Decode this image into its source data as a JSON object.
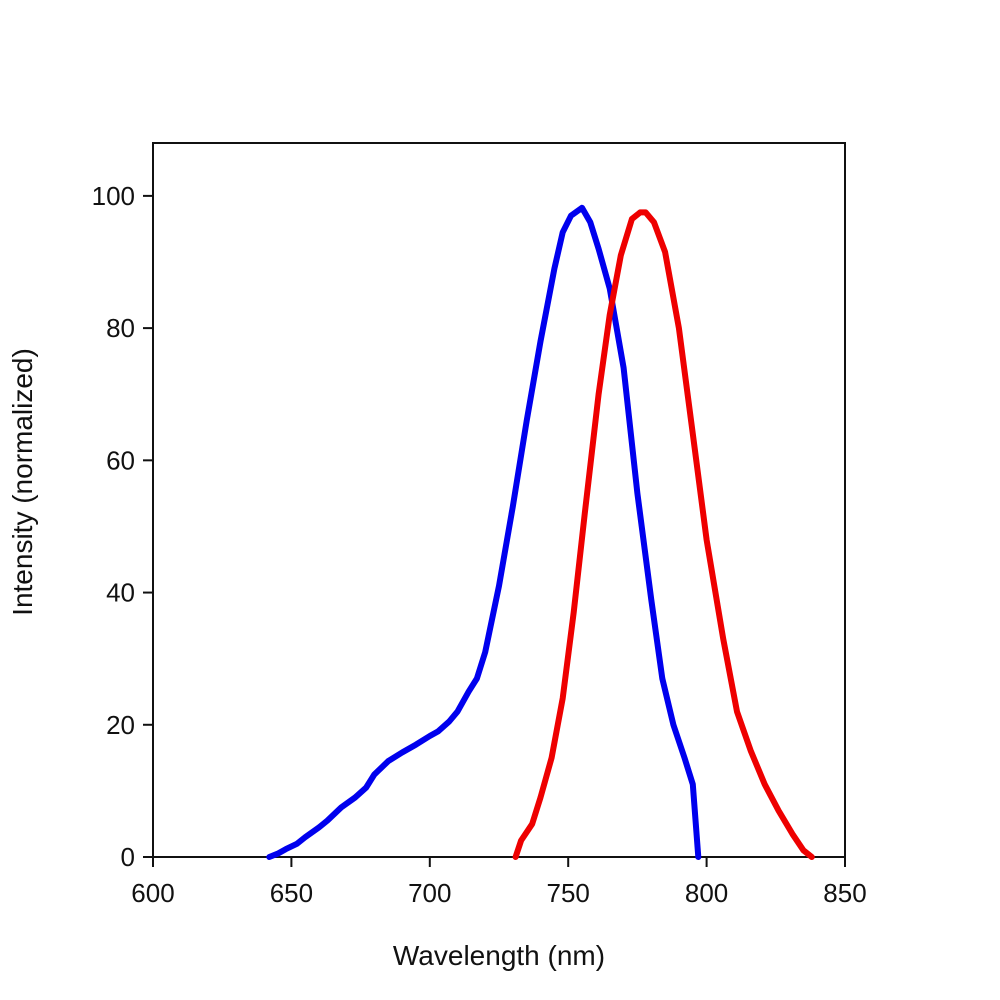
{
  "chart_data": {
    "type": "line",
    "title": "",
    "xlabel": "Wavelength (nm)",
    "ylabel": "Intensity (normalized)",
    "xlim": [
      600,
      850
    ],
    "ylim": [
      0,
      108
    ],
    "x_ticks": [
      600,
      650,
      700,
      750,
      800,
      850
    ],
    "y_ticks": [
      0,
      20,
      40,
      60,
      80,
      100
    ],
    "x_tick_labels": [
      "600",
      "650",
      "700",
      "750",
      "800",
      "850"
    ],
    "y_tick_labels": [
      "0",
      "20",
      "40",
      "60",
      "80",
      "100"
    ],
    "grid": false,
    "legend": "none",
    "series": [
      {
        "color": "#0000ee",
        "points": [
          [
            642,
            0
          ],
          [
            645,
            0.5
          ],
          [
            648,
            1.2
          ],
          [
            652,
            2
          ],
          [
            655,
            3
          ],
          [
            660,
            4.5
          ],
          [
            663,
            5.5
          ],
          [
            668,
            7.5
          ],
          [
            673,
            9
          ],
          [
            677,
            10.5
          ],
          [
            680,
            12.5
          ],
          [
            685,
            14.5
          ],
          [
            690,
            15.8
          ],
          [
            695,
            17
          ],
          [
            700,
            18.3
          ],
          [
            703,
            19
          ],
          [
            707,
            20.5
          ],
          [
            710,
            22
          ],
          [
            714,
            25
          ],
          [
            717,
            27
          ],
          [
            720,
            31
          ],
          [
            725,
            41
          ],
          [
            730,
            53
          ],
          [
            735,
            66
          ],
          [
            740,
            78
          ],
          [
            745,
            89
          ],
          [
            748,
            94.5
          ],
          [
            751,
            97
          ],
          [
            755,
            98.2
          ],
          [
            758,
            96
          ],
          [
            761,
            92
          ],
          [
            765,
            86
          ],
          [
            770,
            74
          ],
          [
            775,
            55
          ],
          [
            780,
            39
          ],
          [
            784,
            27
          ],
          [
            788,
            20
          ],
          [
            792,
            15
          ],
          [
            795,
            11
          ],
          [
            797,
            0
          ]
        ]
      },
      {
        "color": "#ee0000",
        "points": [
          [
            731,
            0
          ],
          [
            733,
            2.5
          ],
          [
            737,
            5
          ],
          [
            740,
            9
          ],
          [
            744,
            15
          ],
          [
            748,
            24
          ],
          [
            752,
            37
          ],
          [
            756,
            52
          ],
          [
            761,
            70
          ],
          [
            765,
            82
          ],
          [
            769,
            91
          ],
          [
            773,
            96.5
          ],
          [
            776,
            97.5
          ],
          [
            778,
            97.5
          ],
          [
            781,
            96
          ],
          [
            785,
            91.5
          ],
          [
            790,
            80
          ],
          [
            795,
            64
          ],
          [
            800,
            48
          ],
          [
            806,
            33
          ],
          [
            811,
            22
          ],
          [
            816,
            16
          ],
          [
            821,
            11
          ],
          [
            826,
            7
          ],
          [
            831,
            3.5
          ],
          [
            835,
            1
          ],
          [
            838,
            0
          ]
        ]
      }
    ]
  }
}
